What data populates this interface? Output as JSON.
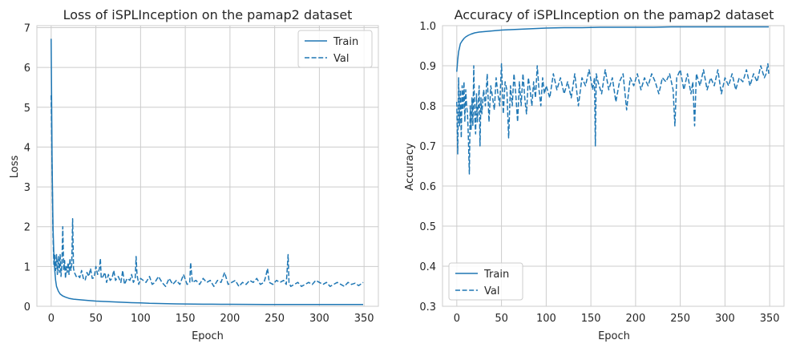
{
  "chart_data": [
    {
      "type": "line",
      "title": "Loss of iSPLInception on the pamap2 dataset",
      "xlabel": "Epoch",
      "ylabel": "Loss",
      "xlim": [
        -16,
        366
      ],
      "ylim": [
        0,
        7.05
      ],
      "xticks": [
        0,
        50,
        100,
        150,
        200,
        250,
        300,
        350
      ],
      "yticks": [
        0,
        1,
        2,
        3,
        4,
        5,
        6,
        7
      ],
      "grid": true,
      "legend_position": "top-right",
      "series_style": [
        "solid",
        "dashed"
      ],
      "color": "#1f77b4",
      "series": [
        {
          "name": "Train",
          "x": [
            0,
            1,
            2,
            3,
            4,
            5,
            6,
            8,
            10,
            13,
            16,
            20,
            25,
            30,
            35,
            40,
            50,
            60,
            70,
            80,
            90,
            100,
            110,
            120,
            130,
            140,
            150,
            160,
            170,
            180,
            190,
            200,
            220,
            240,
            260,
            280,
            300,
            320,
            340,
            349
          ],
          "values": [
            6.72,
            3.6,
            2.0,
            1.3,
            0.9,
            0.65,
            0.5,
            0.38,
            0.31,
            0.26,
            0.23,
            0.2,
            0.18,
            0.17,
            0.16,
            0.15,
            0.13,
            0.12,
            0.11,
            0.1,
            0.09,
            0.085,
            0.075,
            0.07,
            0.065,
            0.06,
            0.058,
            0.055,
            0.053,
            0.052,
            0.05,
            0.05,
            0.048,
            0.047,
            0.046,
            0.045,
            0.045,
            0.044,
            0.044,
            0.044
          ]
        },
        {
          "name": "Val",
          "x": [
            0,
            1,
            2,
            3,
            4,
            5,
            6,
            7,
            8,
            9,
            10,
            11,
            12,
            13,
            14,
            15,
            16,
            17,
            18,
            19,
            20,
            21,
            22,
            23,
            24,
            25,
            26,
            27,
            28,
            30,
            32,
            34,
            36,
            38,
            40,
            42,
            44,
            46,
            48,
            50,
            52,
            54,
            55,
            56,
            58,
            60,
            62,
            64,
            66,
            68,
            70,
            72,
            75,
            78,
            80,
            82,
            85,
            88,
            90,
            92,
            94,
            95,
            96,
            98,
            100,
            103,
            106,
            110,
            113,
            116,
            120,
            124,
            128,
            132,
            136,
            140,
            144,
            148,
            152,
            155,
            156,
            158,
            162,
            166,
            170,
            174,
            178,
            182,
            186,
            190,
            194,
            198,
            202,
            206,
            210,
            214,
            218,
            222,
            226,
            230,
            234,
            238,
            240,
            242,
            244,
            248,
            252,
            256,
            260,
            263,
            265,
            266,
            268,
            272,
            276,
            280,
            284,
            288,
            292,
            296,
            300,
            304,
            308,
            312,
            316,
            320,
            324,
            328,
            332,
            336,
            340,
            344,
            349
          ],
          "values": [
            5.3,
            3.4,
            1.8,
            1.05,
            1.3,
            0.9,
            1.3,
            0.8,
            1.25,
            0.85,
            1.3,
            0.75,
            1.05,
            2.0,
            0.9,
            1.15,
            0.7,
            1.0,
            0.85,
            1.1,
            0.8,
            1.2,
            0.9,
            1.05,
            2.2,
            0.95,
            0.85,
            0.8,
            0.75,
            0.78,
            0.72,
            0.9,
            0.7,
            0.65,
            0.85,
            0.75,
            0.95,
            0.7,
            0.72,
            1.0,
            0.8,
            0.95,
            1.2,
            0.7,
            0.75,
            0.85,
            0.6,
            0.8,
            0.65,
            0.7,
            0.9,
            0.65,
            0.75,
            0.6,
            0.9,
            0.55,
            0.7,
            0.65,
            0.8,
            0.6,
            0.7,
            1.25,
            0.8,
            0.55,
            0.7,
            0.65,
            0.6,
            0.75,
            0.55,
            0.6,
            0.75,
            0.6,
            0.5,
            0.7,
            0.55,
            0.65,
            0.55,
            0.8,
            0.55,
            0.6,
            1.1,
            0.6,
            0.65,
            0.55,
            0.7,
            0.6,
            0.65,
            0.5,
            0.65,
            0.6,
            0.85,
            0.55,
            0.6,
            0.65,
            0.5,
            0.6,
            0.55,
            0.65,
            0.6,
            0.7,
            0.55,
            0.6,
            0.75,
            0.95,
            0.6,
            0.55,
            0.65,
            0.6,
            0.65,
            0.55,
            1.3,
            0.6,
            0.5,
            0.55,
            0.6,
            0.5,
            0.55,
            0.6,
            0.55,
            0.65,
            0.6,
            0.55,
            0.6,
            0.5,
            0.55,
            0.6,
            0.55,
            0.5,
            0.6,
            0.55,
            0.58,
            0.52,
            0.6
          ]
        }
      ]
    },
    {
      "type": "line",
      "title": "Accuracy of iSPLInception on the pamap2 dataset",
      "xlabel": "Epoch",
      "ylabel": "Accuracy",
      "xlim": [
        -16,
        366
      ],
      "ylim": [
        0.3,
        1.0
      ],
      "xticks": [
        0,
        50,
        100,
        150,
        200,
        250,
        300,
        350
      ],
      "yticks": [
        0.3,
        0.4,
        0.5,
        0.6,
        0.7,
        0.8,
        0.9,
        1.0
      ],
      "grid": true,
      "legend_position": "bottom-left",
      "series_style": [
        "solid",
        "dashed"
      ],
      "color": "#1f77b4",
      "series": [
        {
          "name": "Train",
          "x": [
            0,
            1,
            2,
            3,
            4,
            6,
            8,
            10,
            13,
            16,
            20,
            25,
            30,
            40,
            50,
            60,
            70,
            80,
            90,
            100,
            120,
            140,
            160,
            180,
            200,
            220,
            240,
            260,
            280,
            300,
            320,
            340,
            349
          ],
          "values": [
            0.885,
            0.915,
            0.935,
            0.945,
            0.955,
            0.962,
            0.968,
            0.972,
            0.976,
            0.979,
            0.982,
            0.984,
            0.985,
            0.987,
            0.989,
            0.99,
            0.991,
            0.992,
            0.993,
            0.994,
            0.995,
            0.995,
            0.996,
            0.996,
            0.996,
            0.996,
            0.997,
            0.997,
            0.997,
            0.997,
            0.997,
            0.997,
            0.997
          ]
        },
        {
          "name": "Val",
          "x": [
            0,
            1,
            2,
            3,
            4,
            5,
            6,
            7,
            8,
            9,
            10,
            11,
            12,
            13,
            14,
            15,
            16,
            17,
            18,
            19,
            20,
            21,
            22,
            23,
            24,
            25,
            26,
            27,
            28,
            30,
            32,
            34,
            36,
            38,
            40,
            42,
            44,
            46,
            48,
            50,
            52,
            54,
            56,
            58,
            60,
            62,
            64,
            66,
            68,
            70,
            72,
            74,
            76,
            78,
            80,
            82,
            84,
            86,
            88,
            90,
            92,
            94,
            96,
            98,
            100,
            104,
            108,
            112,
            116,
            120,
            124,
            128,
            132,
            136,
            140,
            144,
            148,
            152,
            154,
            155,
            156,
            158,
            162,
            166,
            170,
            174,
            178,
            182,
            186,
            190,
            194,
            198,
            202,
            206,
            210,
            214,
            218,
            222,
            226,
            230,
            234,
            238,
            242,
            244,
            246,
            250,
            254,
            258,
            262,
            264,
            266,
            268,
            272,
            276,
            280,
            284,
            288,
            292,
            296,
            300,
            304,
            308,
            312,
            316,
            320,
            324,
            328,
            332,
            336,
            340,
            344,
            346,
            348,
            349
          ],
          "values": [
            0.81,
            0.68,
            0.87,
            0.75,
            0.84,
            0.72,
            0.85,
            0.79,
            0.86,
            0.76,
            0.84,
            0.8,
            0.78,
            0.72,
            0.63,
            0.8,
            0.74,
            0.82,
            0.75,
            0.9,
            0.78,
            0.73,
            0.83,
            0.76,
            0.8,
            0.85,
            0.7,
            0.82,
            0.78,
            0.84,
            0.8,
            0.88,
            0.76,
            0.85,
            0.82,
            0.79,
            0.87,
            0.83,
            0.8,
            0.905,
            0.78,
            0.86,
            0.84,
            0.72,
            0.85,
            0.8,
            0.88,
            0.83,
            0.76,
            0.86,
            0.8,
            0.88,
            0.82,
            0.78,
            0.87,
            0.84,
            0.8,
            0.86,
            0.82,
            0.9,
            0.84,
            0.8,
            0.87,
            0.83,
            0.85,
            0.82,
            0.88,
            0.84,
            0.87,
            0.83,
            0.86,
            0.82,
            0.88,
            0.8,
            0.87,
            0.85,
            0.89,
            0.84,
            0.87,
            0.7,
            0.88,
            0.86,
            0.83,
            0.89,
            0.84,
            0.87,
            0.81,
            0.86,
            0.88,
            0.79,
            0.87,
            0.85,
            0.88,
            0.84,
            0.87,
            0.85,
            0.88,
            0.86,
            0.83,
            0.87,
            0.86,
            0.88,
            0.84,
            0.75,
            0.87,
            0.89,
            0.84,
            0.88,
            0.83,
            0.86,
            0.75,
            0.88,
            0.85,
            0.89,
            0.84,
            0.87,
            0.85,
            0.89,
            0.83,
            0.87,
            0.85,
            0.88,
            0.84,
            0.87,
            0.86,
            0.89,
            0.85,
            0.88,
            0.86,
            0.9,
            0.87,
            0.88,
            0.905,
            0.88
          ]
        }
      ]
    }
  ]
}
